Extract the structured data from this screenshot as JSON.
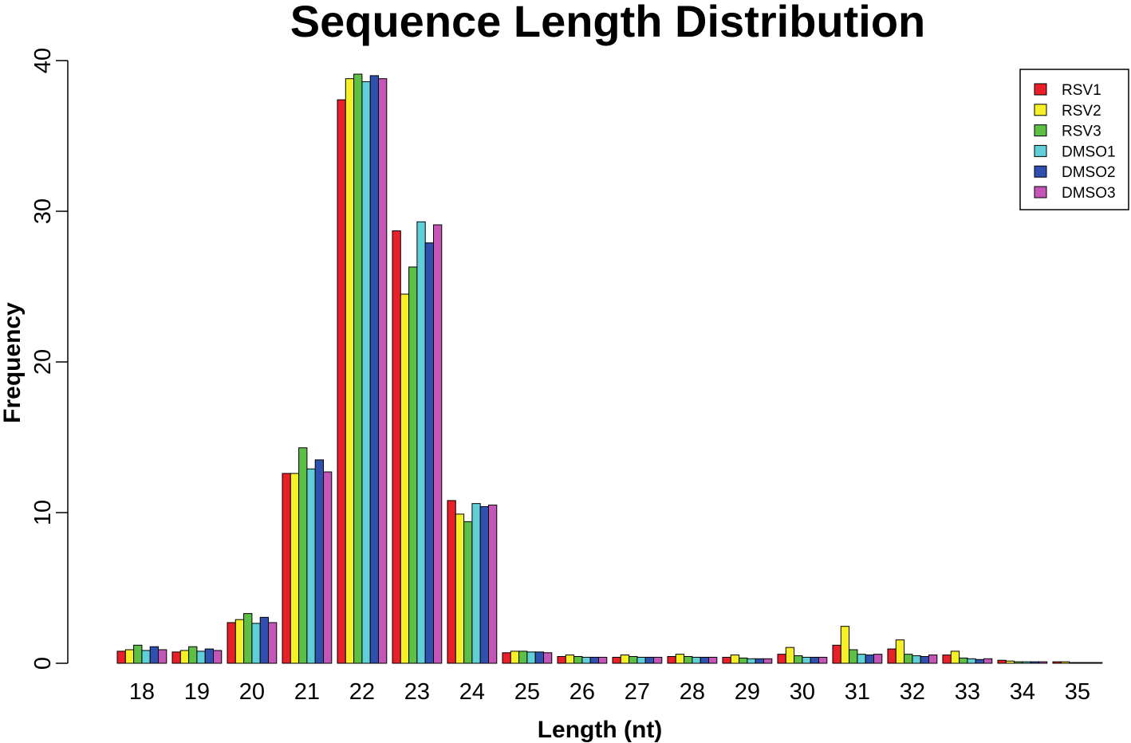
{
  "chart_data": {
    "type": "bar",
    "title": "Sequence Length Distribution",
    "xlabel": "Length (nt)",
    "ylabel": "Frequency",
    "ylim": [
      0,
      40
    ],
    "yticks": [
      0,
      10,
      20,
      30,
      40
    ],
    "categories": [
      "18",
      "19",
      "20",
      "21",
      "22",
      "23",
      "24",
      "25",
      "26",
      "27",
      "28",
      "29",
      "30",
      "31",
      "32",
      "33",
      "34",
      "35"
    ],
    "legend_position": "top-right",
    "series": [
      {
        "name": "RSV1",
        "color": "#e8202a",
        "values": [
          0.8,
          0.75,
          2.7,
          12.6,
          37.4,
          28.7,
          10.8,
          0.7,
          0.45,
          0.4,
          0.45,
          0.4,
          0.6,
          1.2,
          0.95,
          0.55,
          0.2,
          0.1
        ]
      },
      {
        "name": "RSV2",
        "color": "#f5f027",
        "values": [
          0.9,
          0.85,
          2.9,
          12.6,
          38.8,
          24.5,
          9.9,
          0.8,
          0.55,
          0.55,
          0.6,
          0.55,
          1.05,
          2.45,
          1.55,
          0.8,
          0.15,
          0.1
        ]
      },
      {
        "name": "RSV3",
        "color": "#5ebf47",
        "values": [
          1.2,
          1.1,
          3.3,
          14.3,
          39.1,
          26.3,
          9.4,
          0.8,
          0.45,
          0.45,
          0.45,
          0.35,
          0.5,
          0.9,
          0.6,
          0.35,
          0.1,
          0.05
        ]
      },
      {
        "name": "DMSO1",
        "color": "#60cfd8",
        "values": [
          0.85,
          0.8,
          2.65,
          12.9,
          38.6,
          29.3,
          10.6,
          0.75,
          0.4,
          0.4,
          0.4,
          0.3,
          0.4,
          0.6,
          0.5,
          0.3,
          0.1,
          0.05
        ]
      },
      {
        "name": "DMSO2",
        "color": "#3050b0",
        "values": [
          1.1,
          0.95,
          3.05,
          13.5,
          39.0,
          27.9,
          10.4,
          0.75,
          0.4,
          0.4,
          0.4,
          0.3,
          0.4,
          0.55,
          0.45,
          0.25,
          0.1,
          0.05
        ]
      },
      {
        "name": "DMSO3",
        "color": "#c456b8",
        "values": [
          0.9,
          0.85,
          2.7,
          12.7,
          38.8,
          29.1,
          10.5,
          0.7,
          0.4,
          0.4,
          0.4,
          0.3,
          0.4,
          0.6,
          0.55,
          0.3,
          0.1,
          0.05
        ]
      }
    ]
  }
}
